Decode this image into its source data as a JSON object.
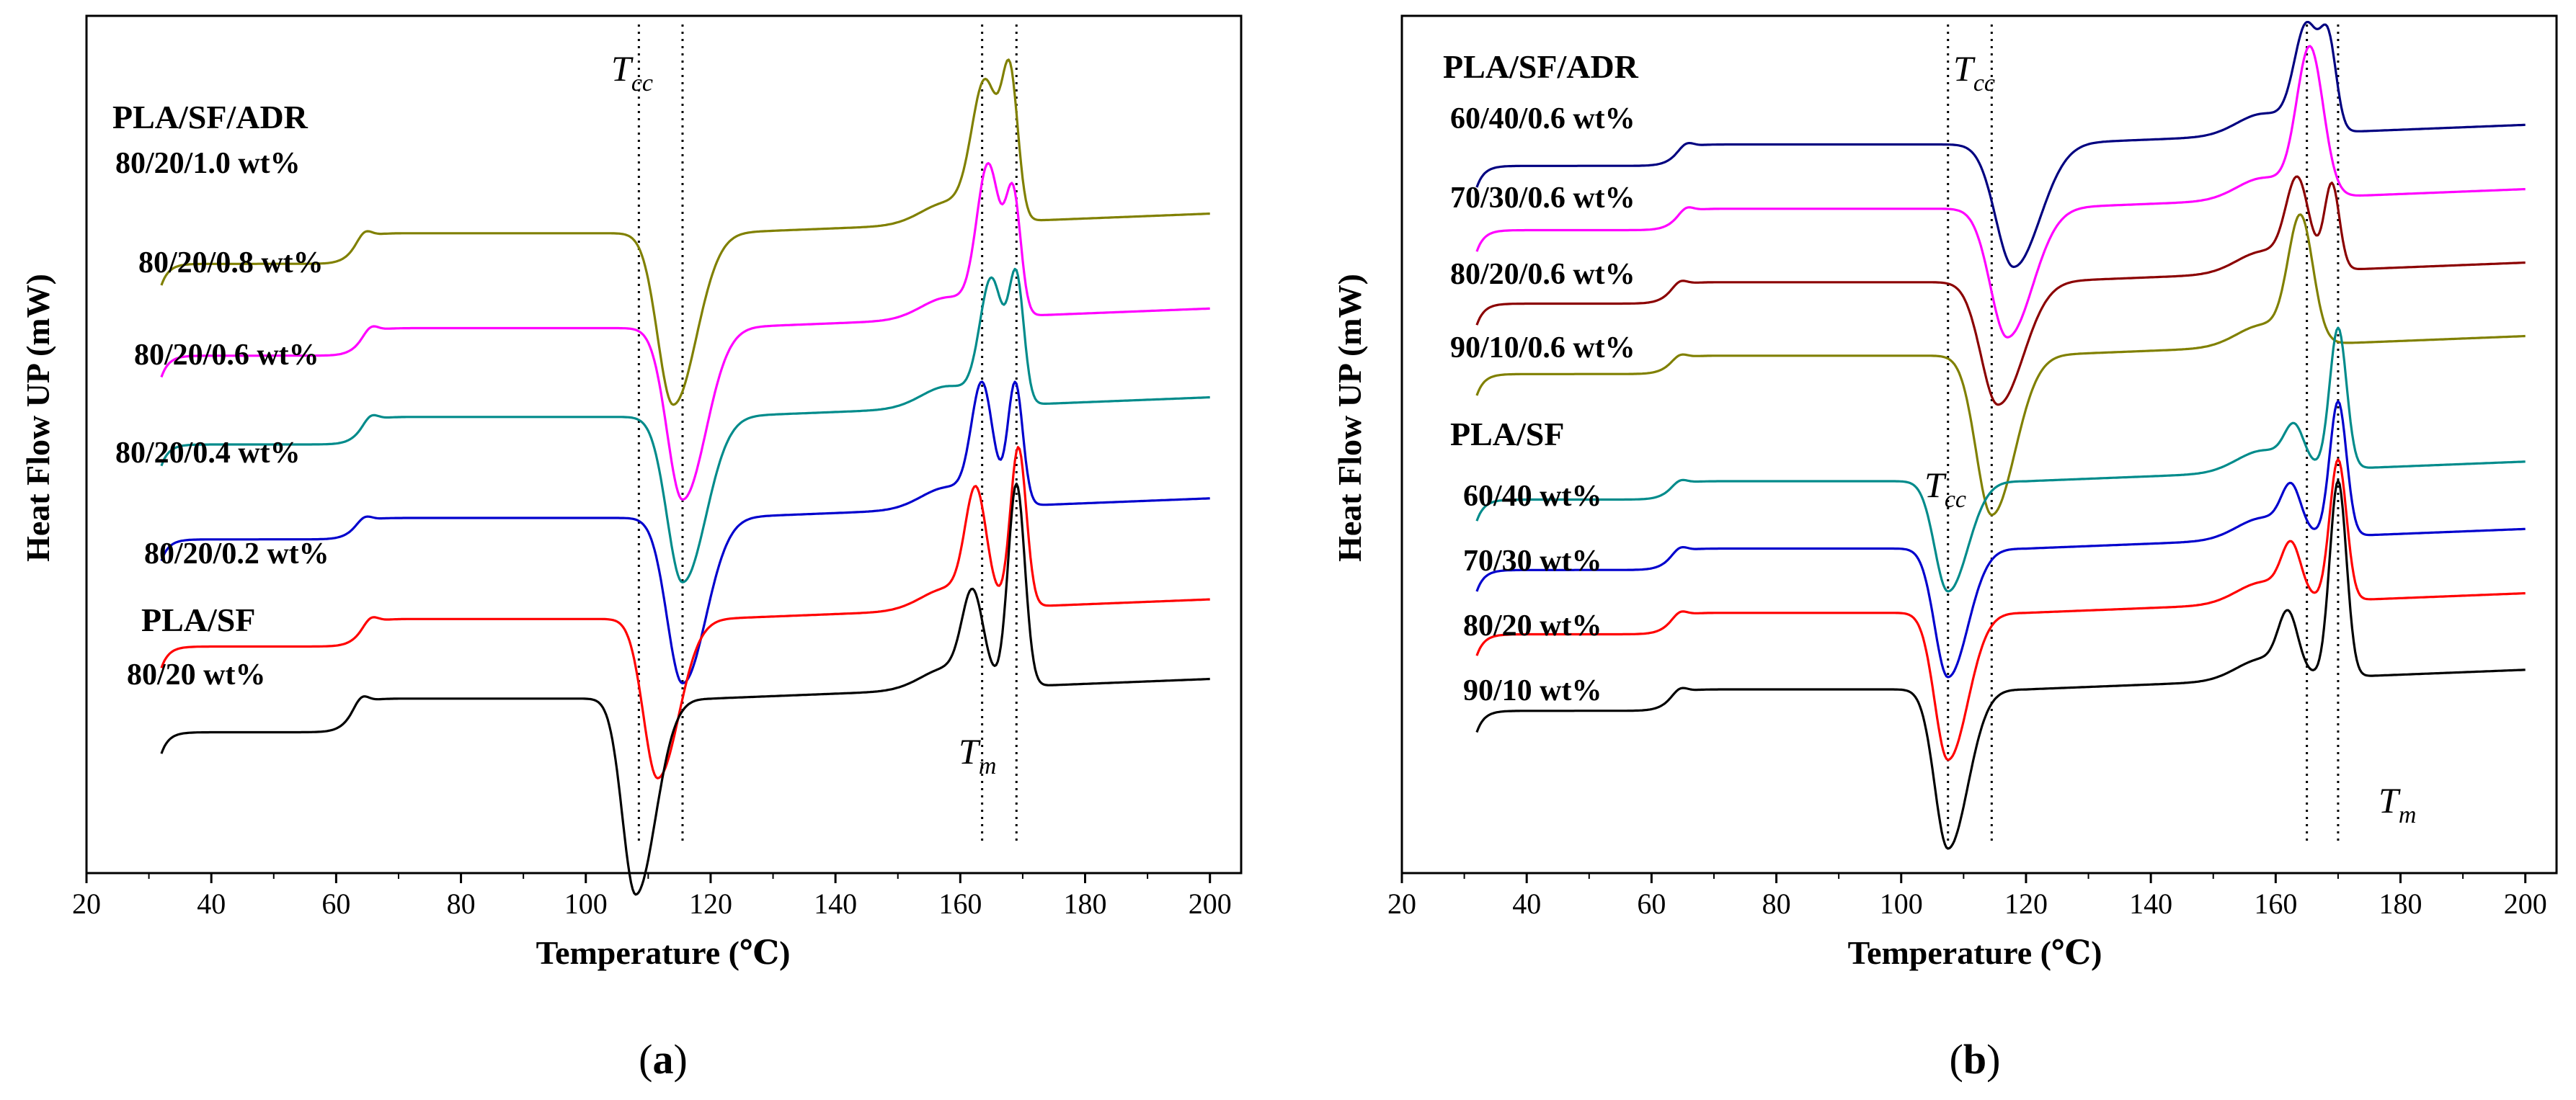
{
  "chart_data": [
    {
      "type": "line",
      "panel": "a",
      "caption_letter": "a",
      "xlabel": "Temperature (℃)",
      "ylabel": "Heat Flow UP (mW)",
      "xlim": [
        20,
        205
      ],
      "xticks": [
        20,
        40,
        60,
        80,
        100,
        120,
        140,
        160,
        180,
        200
      ],
      "x_range": [
        32,
        200
      ],
      "group_labels": [
        "PLA/SF/ADR",
        "PLA/SF"
      ],
      "annotations": {
        "tcc": {
          "main": "T",
          "sub": "cc",
          "x": 110
        },
        "tm": {
          "main": "T",
          "sub": "m",
          "x": 166
        }
      },
      "vlines": [
        108.5,
        115.5,
        163.5,
        169
      ],
      "series": [
        {
          "name": "80/20/1.0 wt%",
          "color": "#808000",
          "baseline": 4.05,
          "glass_x": 63,
          "glass_amp": 0.5,
          "peaks": [
            {
              "type": "gauss",
              "x": 114,
              "amp": -2.8,
              "w": 3.5,
              "skew": 1.5
            },
            {
              "type": "gauss",
              "x": 164,
              "amp": 2.2,
              "w": 3.0
            },
            {
              "type": "gauss",
              "x": 168,
              "amp": 2.2,
              "w": 1.8
            }
          ]
        },
        {
          "name": "80/20/0.8 wt%",
          "color": "#ff00ff",
          "baseline": 5.55,
          "glass_x": 64,
          "glass_amp": 0.45,
          "peaks": [
            {
              "type": "gauss",
              "x": 115.5,
              "amp": -2.8,
              "w": 3.5,
              "skew": 1.5
            },
            {
              "type": "gauss",
              "x": 164.5,
              "amp": 2.4,
              "w": 2.6
            },
            {
              "type": "gauss",
              "x": 168.5,
              "amp": 1.9,
              "w": 1.7
            }
          ]
        },
        {
          "name": "80/20/0.6 wt%",
          "color": "#008b8b",
          "baseline": 7.0,
          "glass_x": 64,
          "glass_amp": 0.45,
          "peaks": [
            {
              "type": "gauss",
              "x": 115.5,
              "amp": -2.7,
              "w": 3.5,
              "skew": 1.5
            },
            {
              "type": "gauss",
              "x": 165,
              "amp": 2.0,
              "w": 2.6
            },
            {
              "type": "gauss",
              "x": 169,
              "amp": 2.0,
              "w": 1.7
            }
          ]
        },
        {
          "name": "80/20/0.4 wt%",
          "color": "#0000cd",
          "baseline": 8.55,
          "glass_x": 63,
          "glass_amp": 0.35,
          "peaks": [
            {
              "type": "gauss",
              "x": 115.5,
              "amp": -2.7,
              "w": 3.5,
              "skew": 1.5
            },
            {
              "type": "gauss",
              "x": 163.5,
              "amp": 1.9,
              "w": 2.4
            },
            {
              "type": "gauss",
              "x": 168.8,
              "amp": 2.0,
              "w": 1.7
            }
          ]
        },
        {
          "name": "80/20/0.2 wt%",
          "color": "#ff0000",
          "baseline": 10.3,
          "glass_x": 64,
          "glass_amp": 0.45,
          "peaks": [
            {
              "type": "gauss",
              "x": 111.5,
              "amp": -2.6,
              "w": 3.2,
              "skew": 1.5
            },
            {
              "type": "gauss",
              "x": 162.5,
              "amp": 1.8,
              "w": 2.4
            },
            {
              "type": "gauss",
              "x": 169.3,
              "amp": 2.6,
              "w": 1.8
            }
          ]
        },
        {
          "name": "80/20 wt%",
          "color": "#000000",
          "baseline": 11.7,
          "glass_x": 62.5,
          "glass_amp": 0.55,
          "peaks": [
            {
              "type": "gauss",
              "x": 108,
              "amp": -3.2,
              "w": 3.0,
              "skew": 1.5
            },
            {
              "type": "gauss",
              "x": 162,
              "amp": 1.4,
              "w": 2.4
            },
            {
              "type": "gauss",
              "x": 169,
              "amp": 3.3,
              "w": 1.9
            }
          ]
        }
      ],
      "ylim": [
        0,
        14
      ]
    },
    {
      "type": "line",
      "panel": "b",
      "caption_letter": "b",
      "xlabel": "Temperature (℃)",
      "ylabel": "Heat Flow UP (mW)",
      "xlim": [
        20,
        205
      ],
      "xticks": [
        20,
        40,
        60,
        80,
        100,
        120,
        140,
        160,
        180,
        200
      ],
      "x_range": [
        32,
        200
      ],
      "group_labels": [
        "PLA/SF/ADR",
        "PLA/SF"
      ],
      "annotations": {
        "tcc1": {
          "main": "T",
          "sub": "cc",
          "x": 116
        },
        "tcc2": {
          "main": "T",
          "sub": "cc",
          "x": 107.5
        },
        "tm": {
          "main": "T",
          "sub": "m",
          "x": 168
        }
      },
      "vlines": [
        114.5,
        107.5,
        165,
        170
      ],
      "series": [
        {
          "name": "60/40/0.6 wt%",
          "color": "#000080",
          "baseline": 2.45,
          "glass_x": 64,
          "glass_amp": 0.35,
          "peaks": [
            {
              "type": "gauss",
              "x": 118,
              "amp": -2.0,
              "w": 4.0,
              "skew": 1.5
            },
            {
              "type": "gauss",
              "x": 165,
              "amp": 1.7,
              "w": 2.8
            },
            {
              "type": "gauss",
              "x": 168.5,
              "amp": 1.3,
              "w": 1.8
            }
          ]
        },
        {
          "name": "70/30/0.6 wt%",
          "color": "#ff00ff",
          "baseline": 3.5,
          "glass_x": 64,
          "glass_amp": 0.35,
          "peaks": [
            {
              "type": "gauss",
              "x": 117,
              "amp": -2.1,
              "w": 3.8,
              "skew": 1.5
            },
            {
              "type": "gauss",
              "x": 165.5,
              "amp": 2.4,
              "w": 3.0
            }
          ]
        },
        {
          "name": "80/20/0.6 wt%",
          "color": "#8b0000",
          "baseline": 4.7,
          "glass_x": 63,
          "glass_amp": 0.35,
          "peaks": [
            {
              "type": "gauss",
              "x": 115.5,
              "amp": -2.0,
              "w": 3.8,
              "skew": 1.5
            },
            {
              "type": "gauss",
              "x": 163.5,
              "amp": 1.4,
              "w": 2.6
            },
            {
              "type": "gauss",
              "x": 169,
              "amp": 1.4,
              "w": 1.7
            }
          ]
        },
        {
          "name": "90/10/0.6 wt%",
          "color": "#808000",
          "baseline": 5.85,
          "glass_x": 63,
          "glass_amp": 0.3,
          "peaks": [
            {
              "type": "gauss",
              "x": 114.5,
              "amp": -2.6,
              "w": 3.5,
              "skew": 1.5
            },
            {
              "type": "gauss",
              "x": 164,
              "amp": 2.0,
              "w": 2.8
            }
          ]
        },
        {
          "name": "60/40 wt%",
          "color": "#008b8b",
          "baseline": 7.9,
          "glass_x": 63,
          "glass_amp": 0.3,
          "peaks": [
            {
              "type": "gauss",
              "x": 107.5,
              "amp": -1.8,
              "w": 3.0,
              "skew": 1.5
            },
            {
              "type": "gauss",
              "x": 163,
              "amp": 0.6,
              "w": 2.2
            },
            {
              "type": "gauss",
              "x": 170,
              "amp": 2.3,
              "w": 1.9
            }
          ]
        },
        {
          "name": "70/30 wt%",
          "color": "#0000cd",
          "baseline": 9.05,
          "glass_x": 63,
          "glass_amp": 0.35,
          "peaks": [
            {
              "type": "gauss",
              "x": 107.5,
              "amp": -2.1,
              "w": 3.0,
              "skew": 1.5
            },
            {
              "type": "gauss",
              "x": 162.5,
              "amp": 0.7,
              "w": 2.2
            },
            {
              "type": "gauss",
              "x": 170,
              "amp": 2.2,
              "w": 1.9
            }
          ]
        },
        {
          "name": "80/20 wt%",
          "color": "#ff0000",
          "baseline": 10.1,
          "glass_x": 63,
          "glass_amp": 0.35,
          "peaks": [
            {
              "type": "gauss",
              "x": 107.5,
              "amp": -2.4,
              "w": 3.0,
              "skew": 1.5
            },
            {
              "type": "gauss",
              "x": 162.5,
              "amp": 0.8,
              "w": 2.2
            },
            {
              "type": "gauss",
              "x": 170,
              "amp": 2.3,
              "w": 1.9
            }
          ]
        },
        {
          "name": "90/10 wt%",
          "color": "#000000",
          "baseline": 11.35,
          "glass_x": 63,
          "glass_amp": 0.35,
          "peaks": [
            {
              "type": "gauss",
              "x": 107.5,
              "amp": -2.6,
              "w": 3.0,
              "skew": 1.5
            },
            {
              "type": "gauss",
              "x": 162,
              "amp": 0.9,
              "w": 2.2
            },
            {
              "type": "gauss",
              "x": 170,
              "amp": 3.2,
              "w": 1.9
            }
          ]
        }
      ],
      "ylim": [
        0,
        14
      ]
    }
  ]
}
